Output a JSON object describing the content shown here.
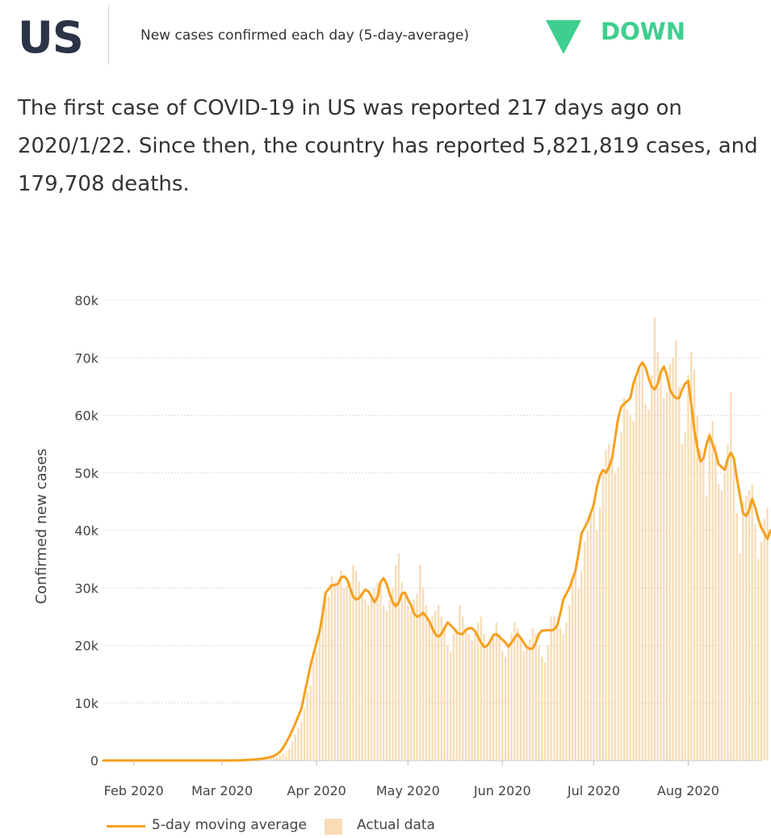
{
  "header": {
    "country": "US",
    "metric_label": "New cases confirmed each day (5-day-average)",
    "trend_label": "DOWN",
    "trend_icon": "triangle-down-icon",
    "trend_color": "#3ecf8e"
  },
  "summary": {
    "line1": "The first case of COVID-19 in US was reported 217 days ago on",
    "line2": "2020/1/22. Since then, the country has reported 5,821,819 cases, and",
    "line3": "179,708 deaths."
  },
  "chart_data": {
    "type": "bar",
    "ylabel": "Confirmed new cases",
    "ylim": [
      0,
      80000
    ],
    "yticks": [
      0,
      10000,
      20000,
      30000,
      40000,
      50000,
      60000,
      70000,
      80000
    ],
    "ytick_labels": [
      "0",
      "10k",
      "20k",
      "30k",
      "40k",
      "50k",
      "60k",
      "70k",
      "80k"
    ],
    "xticks": [
      {
        "date": "2020-02-01",
        "label": "Feb 2020"
      },
      {
        "date": "2020-03-01",
        "label": "Mar 2020"
      },
      {
        "date": "2020-04-01",
        "label": "Apr 2020"
      },
      {
        "date": "2020-05-01",
        "label": "May 2020"
      },
      {
        "date": "2020-06-01",
        "label": "Jun 2020"
      },
      {
        "date": "2020-07-01",
        "label": "Jul 2020"
      },
      {
        "date": "2020-08-01",
        "label": "Aug 2020"
      }
    ],
    "x_start": "2020-01-22",
    "x_end": "2020-08-25",
    "grid": true,
    "bar_color": "#f8dcb6",
    "line_color": "#f5a01e",
    "legend": {
      "placement": "bottom-left",
      "entries": [
        {
          "name": "5-day moving average",
          "kind": "line"
        },
        {
          "name": "Actual data",
          "kind": "bar"
        }
      ]
    },
    "series": [
      {
        "name": "Actual data",
        "kind": "bar",
        "values": [
          1,
          0,
          1,
          0,
          3,
          0,
          0,
          0,
          0,
          2,
          1,
          0,
          3,
          0,
          0,
          0,
          0,
          0,
          0,
          1,
          1,
          0,
          0,
          0,
          0,
          0,
          1,
          0,
          0,
          0,
          0,
          0,
          1,
          0,
          0,
          0,
          18,
          0,
          6,
          1,
          3,
          6,
          1,
          5,
          9,
          23,
          19,
          32,
          67,
          68,
          99,
          102,
          108,
          257,
          277,
          369,
          479,
          544,
          842,
          1150,
          1260,
          2000,
          3300,
          4500,
          5600,
          6700,
          9000,
          12000,
          13000,
          17000,
          19000,
          23000,
          26000,
          28000,
          28500,
          32000,
          31000,
          31000,
          33000,
          30000,
          30500,
          31000,
          34000,
          33000,
          31000,
          29000,
          28000,
          27000,
          29000,
          30000,
          31000,
          30000,
          27000,
          26000,
          28000,
          30000,
          34000,
          36000,
          31000,
          29000,
          27000,
          26000,
          28000,
          29000,
          34000,
          30000,
          27000,
          24000,
          25000,
          26000,
          27000,
          25000,
          23000,
          20000,
          19000,
          22000,
          23000,
          27000,
          25000,
          23000,
          22000,
          21000,
          22000,
          24000,
          25000,
          22000,
          20000,
          21000,
          22000,
          24000,
          22000,
          19000,
          18000,
          20000,
          22000,
          24000,
          23000,
          21000,
          19000,
          20000,
          21000,
          23000,
          22000,
          20000,
          18000,
          17000,
          20000,
          25000,
          25000,
          24000,
          23000,
          22000,
          24000,
          27000,
          31000,
          33000,
          30000,
          33000,
          38000,
          40000,
          43000,
          45000,
          40000,
          44000,
          50000,
          54000,
          55000,
          52000,
          50000,
          51000,
          57000,
          63000,
          61000,
          60000,
          59000,
          66000,
          68000,
          69000,
          62000,
          61000,
          67000,
          77000,
          71000,
          67000,
          63000,
          64000,
          69000,
          70000,
          73000,
          65000,
          55000,
          57000,
          67000,
          71000,
          68000,
          60000,
          54000,
          52000,
          46000,
          57000,
          59000,
          55000,
          48000,
          47000,
          50000,
          55000,
          64000,
          52000,
          43000,
          36000,
          45000,
          46000,
          47000,
          48000,
          41000,
          35000,
          38000,
          42000,
          44000
        ]
      },
      {
        "name": "5-day moving average",
        "kind": "line",
        "values": [
          1,
          0,
          1,
          0,
          1,
          0,
          0,
          0,
          0,
          0,
          1,
          0,
          1,
          0,
          0,
          0,
          0,
          0,
          0,
          0,
          0,
          0,
          0,
          0,
          0,
          0,
          0,
          0,
          0,
          0,
          0,
          0,
          0,
          0,
          0,
          0,
          4,
          5,
          6,
          7,
          8,
          9,
          10,
          12,
          20,
          30,
          50,
          80,
          120,
          160,
          200,
          250,
          300,
          400,
          500,
          600,
          800,
          1100,
          1500,
          2200,
          3100,
          4100,
          5200,
          6400,
          7700,
          9000,
          11500,
          14000,
          16500,
          18500,
          20500,
          22500,
          25500,
          29200,
          29800,
          30500,
          30500,
          30700,
          31800,
          32000,
          31500,
          30000,
          28500,
          28000,
          28200,
          29000,
          29700,
          29400,
          28500,
          27500,
          28400,
          31000,
          31700,
          30700,
          29000,
          27500,
          26800,
          27500,
          29000,
          29200,
          28000,
          27000,
          25500,
          25000,
          25200,
          25700,
          25000,
          24200,
          23000,
          22000,
          21500,
          22000,
          23000,
          24000,
          23500,
          23000,
          22300,
          22000,
          22000,
          22700,
          23000,
          23000,
          22500,
          21500,
          20500,
          19700,
          20000,
          20700,
          21800,
          22000,
          21500,
          21000,
          20500,
          19800,
          20500,
          21300,
          22000,
          21300,
          20500,
          19700,
          19400,
          19500,
          20500,
          22000,
          22600,
          22600,
          22700,
          22600,
          22800,
          23500,
          25500,
          28000,
          29000,
          30000,
          31500,
          33000,
          36000,
          39500,
          40500,
          41500,
          43000,
          44500,
          47500,
          49500,
          50500,
          50000,
          51000,
          52500,
          56000,
          59500,
          61500,
          62000,
          62500,
          63000,
          65500,
          67000,
          68500,
          69200,
          68300,
          66500,
          65000,
          64500,
          65500,
          67500,
          68500,
          67000,
          64500,
          63500,
          63000,
          63000,
          64500,
          65500,
          66000,
          62000,
          57500,
          54500,
          52000,
          52500,
          55000,
          56500,
          55000,
          53500,
          51500,
          51000,
          50500,
          52500,
          53500,
          52500,
          49000,
          46000,
          43000,
          42500,
          43500,
          45500,
          44000,
          42000,
          40500,
          39500,
          38500,
          40000
        ]
      }
    ]
  }
}
